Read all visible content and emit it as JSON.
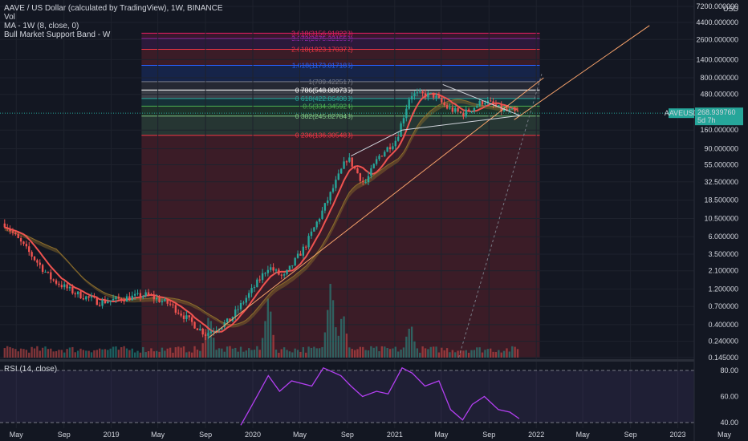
{
  "header": {
    "title": "AAVE / US Dollar (calculated by TradingView), 1W, BINANCE",
    "vol_label": "Vol",
    "ma_label": "MA - 1W (8, close, 0)",
    "band_label": "Bull Market Support Band - W"
  },
  "rsi_label": "RSI (14, close)",
  "price_tag": {
    "symbol": "AAVEUSD",
    "value": "268.939760",
    "countdown": "5d 7h",
    "color": "#26a69a"
  },
  "colors": {
    "background": "#131722",
    "up": "#26a69a",
    "down": "#ef5350",
    "ma": "#ef5350",
    "band": "#8d6e2c",
    "trend": "#f7a26b",
    "rsi": "#b23ff0"
  },
  "chart_data": [
    {
      "type": "candlestick",
      "title": "AAVE / US Dollar (calculated by TradingView), 1W, BINANCE",
      "y_scale": "log",
      "y_unit": "USD",
      "y_ticks": [
        "7200.000000",
        "4400.000000",
        "2600.000000",
        "1400.000000",
        "800.000000",
        "480.000000",
        "268.939760",
        "160.000000",
        "90.000000",
        "55.000000",
        "32.500000",
        "18.500000",
        "10.500000",
        "6.000000",
        "3.500000",
        "2.100000",
        "1.200000",
        "0.700000",
        "0.400000",
        "0.240000",
        "0.145000"
      ],
      "x_ticks": [
        "May",
        "Sep",
        "2019",
        "May",
        "Sep",
        "2020",
        "May",
        "Sep",
        "2021",
        "May",
        "Sep",
        "2022",
        "May",
        "Sep",
        "2023",
        "May"
      ],
      "fib_levels": [
        {
          "label": "3.618(3156.918228)",
          "value": 3156.918228,
          "color": "#e91e63"
        },
        {
          "label": "3.272(2675.321559)",
          "value": 2675.321559,
          "color": "#9c27b0"
        },
        {
          "label": "2.618(1923.170372)",
          "value": 1923.170372,
          "color": "#f23645"
        },
        {
          "label": "1.618(1173.017186)",
          "value": 1173.017186,
          "color": "#2962ff"
        },
        {
          "label": "1(709.422517)",
          "value": 709.422517,
          "color": "#787b86"
        },
        {
          "label": "0.786(548.889735)",
          "value": 548.889735,
          "color": "#ffffff"
        },
        {
          "label": "0.618(422.864000)",
          "value": 422.864,
          "color": "#26a69a"
        },
        {
          "label": "0.5(334.345924)",
          "value": 334.345924,
          "color": "#4caf50"
        },
        {
          "label": "0.382(245.827848)",
          "value": 245.827848,
          "color": "#81c784"
        },
        {
          "label": "0.236(136.305483)",
          "value": 136.305483,
          "color": "#f23645"
        }
      ],
      "anchors": [
        {
          "date": "2018-04-01",
          "close": 9.0
        },
        {
          "date": "2018-06-01",
          "close": 3.8
        },
        {
          "date": "2018-08-01",
          "close": 1.6
        },
        {
          "date": "2018-10-01",
          "close": 1.05
        },
        {
          "date": "2018-12-01",
          "close": 0.8
        },
        {
          "date": "2019-02-01",
          "close": 0.9
        },
        {
          "date": "2019-04-01",
          "close": 1.0
        },
        {
          "date": "2019-06-01",
          "close": 0.75
        },
        {
          "date": "2019-09-01",
          "close": 0.3
        },
        {
          "date": "2019-11-01",
          "close": 0.45
        },
        {
          "date": "2020-01-01",
          "close": 1.2
        },
        {
          "date": "2020-02-10",
          "close": 2.4
        },
        {
          "date": "2020-03-20",
          "close": 1.7
        },
        {
          "date": "2020-05-15",
          "close": 4.5
        },
        {
          "date": "2020-07-01",
          "close": 14
        },
        {
          "date": "2020-09-01",
          "close": 70
        },
        {
          "date": "2020-10-15",
          "close": 30
        },
        {
          "date": "2020-11-20",
          "close": 70
        },
        {
          "date": "2021-01-05",
          "close": 120
        },
        {
          "date": "2021-02-10",
          "close": 480
        },
        {
          "date": "2021-04-10",
          "close": 470
        },
        {
          "date": "2021-05-15",
          "close": 320
        },
        {
          "date": "2021-06-25",
          "close": 260
        },
        {
          "date": "2021-08-20",
          "close": 400
        },
        {
          "date": "2021-10-01",
          "close": 300
        },
        {
          "date": "2021-11-18",
          "close": 269
        }
      ],
      "volume_peaks": [
        {
          "date": "2019-09-10",
          "rel": 0.45
        },
        {
          "date": "2020-02-10",
          "rel": 0.6
        },
        {
          "date": "2020-07-20",
          "rel": 0.8
        },
        {
          "date": "2020-08-20",
          "rel": 0.45
        },
        {
          "date": "2021-02-10",
          "rel": 0.35
        }
      ]
    },
    {
      "type": "line",
      "title": "RSI (14, close)",
      "y_ticks": [
        "80.00",
        "60.00",
        "40.00"
      ],
      "x_ticks": [
        "May",
        "Sep",
        "2019",
        "May",
        "Sep",
        "2020",
        "May",
        "Sep",
        "2021",
        "May",
        "Sep",
        "2022",
        "May",
        "Sep",
        "2023",
        "May"
      ],
      "points": [
        {
          "date": "2019-12-01",
          "rsi": 38
        },
        {
          "date": "2019-12-20",
          "rsi": 48
        },
        {
          "date": "2020-01-15",
          "rsi": 62
        },
        {
          "date": "2020-02-10",
          "rsi": 76
        },
        {
          "date": "2020-03-10",
          "rsi": 64
        },
        {
          "date": "2020-04-10",
          "rsi": 72
        },
        {
          "date": "2020-06-01",
          "rsi": 68
        },
        {
          "date": "2020-07-01",
          "rsi": 82
        },
        {
          "date": "2020-08-15",
          "rsi": 76
        },
        {
          "date": "2020-09-10",
          "rsi": 68
        },
        {
          "date": "2020-10-10",
          "rsi": 60
        },
        {
          "date": "2020-11-15",
          "rsi": 64
        },
        {
          "date": "2020-12-15",
          "rsi": 62
        },
        {
          "date": "2021-01-20",
          "rsi": 82
        },
        {
          "date": "2021-02-15",
          "rsi": 78
        },
        {
          "date": "2021-03-20",
          "rsi": 68
        },
        {
          "date": "2021-04-25",
          "rsi": 72
        },
        {
          "date": "2021-05-25",
          "rsi": 50
        },
        {
          "date": "2021-06-25",
          "rsi": 42
        },
        {
          "date": "2021-07-20",
          "rsi": 54
        },
        {
          "date": "2021-08-20",
          "rsi": 60
        },
        {
          "date": "2021-09-25",
          "rsi": 50
        },
        {
          "date": "2021-10-25",
          "rsi": 48
        },
        {
          "date": "2021-11-18",
          "rsi": 43
        }
      ]
    }
  ]
}
